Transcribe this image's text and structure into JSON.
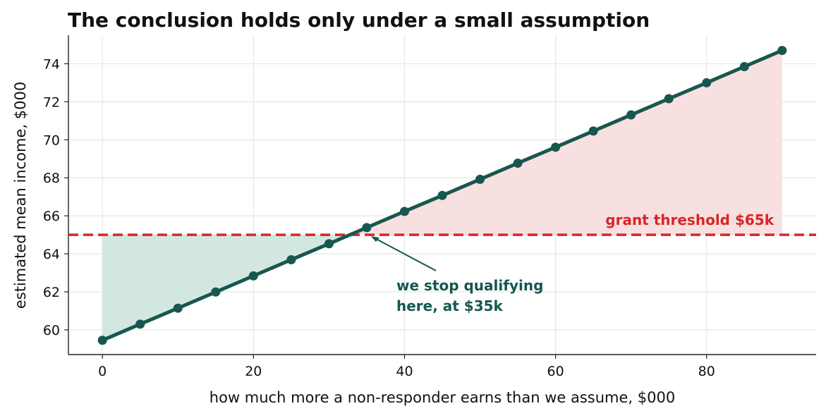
{
  "chart_data": {
    "type": "line",
    "title": "The conclusion holds only under a small assumption",
    "xlabel": "how much more a non-responder earns than we assume, $000",
    "ylabel": "estimated mean income, $000",
    "x": [
      0,
      5,
      10,
      15,
      20,
      25,
      30,
      35,
      40,
      45,
      50,
      55,
      60,
      65,
      70,
      75,
      80,
      85,
      90
    ],
    "series": [
      {
        "color": "#17574f",
        "values": [
          59.45,
          60.3,
          61.14,
          61.99,
          62.84,
          63.69,
          64.53,
          65.38,
          66.23,
          67.07,
          67.92,
          68.77,
          69.61,
          70.46,
          71.31,
          72.16,
          73.0,
          73.85,
          74.7
        ]
      }
    ],
    "threshold": {
      "value": 65,
      "label": "grant threshold $65k",
      "color": "#d62728"
    },
    "below_color": "#d3e7e1",
    "above_color": "#f8dfe0",
    "annotation": {
      "lines": [
        "we stop qualifying",
        "here, at $35k"
      ],
      "color": "#17574f"
    },
    "xlim": [
      -4.5,
      94.5
    ],
    "ylim": [
      58.7,
      75.5
    ],
    "xticks": [
      0,
      20,
      40,
      60,
      80
    ],
    "yticks": [
      60,
      62,
      64,
      66,
      68,
      70,
      72,
      74
    ],
    "grid": true
  }
}
